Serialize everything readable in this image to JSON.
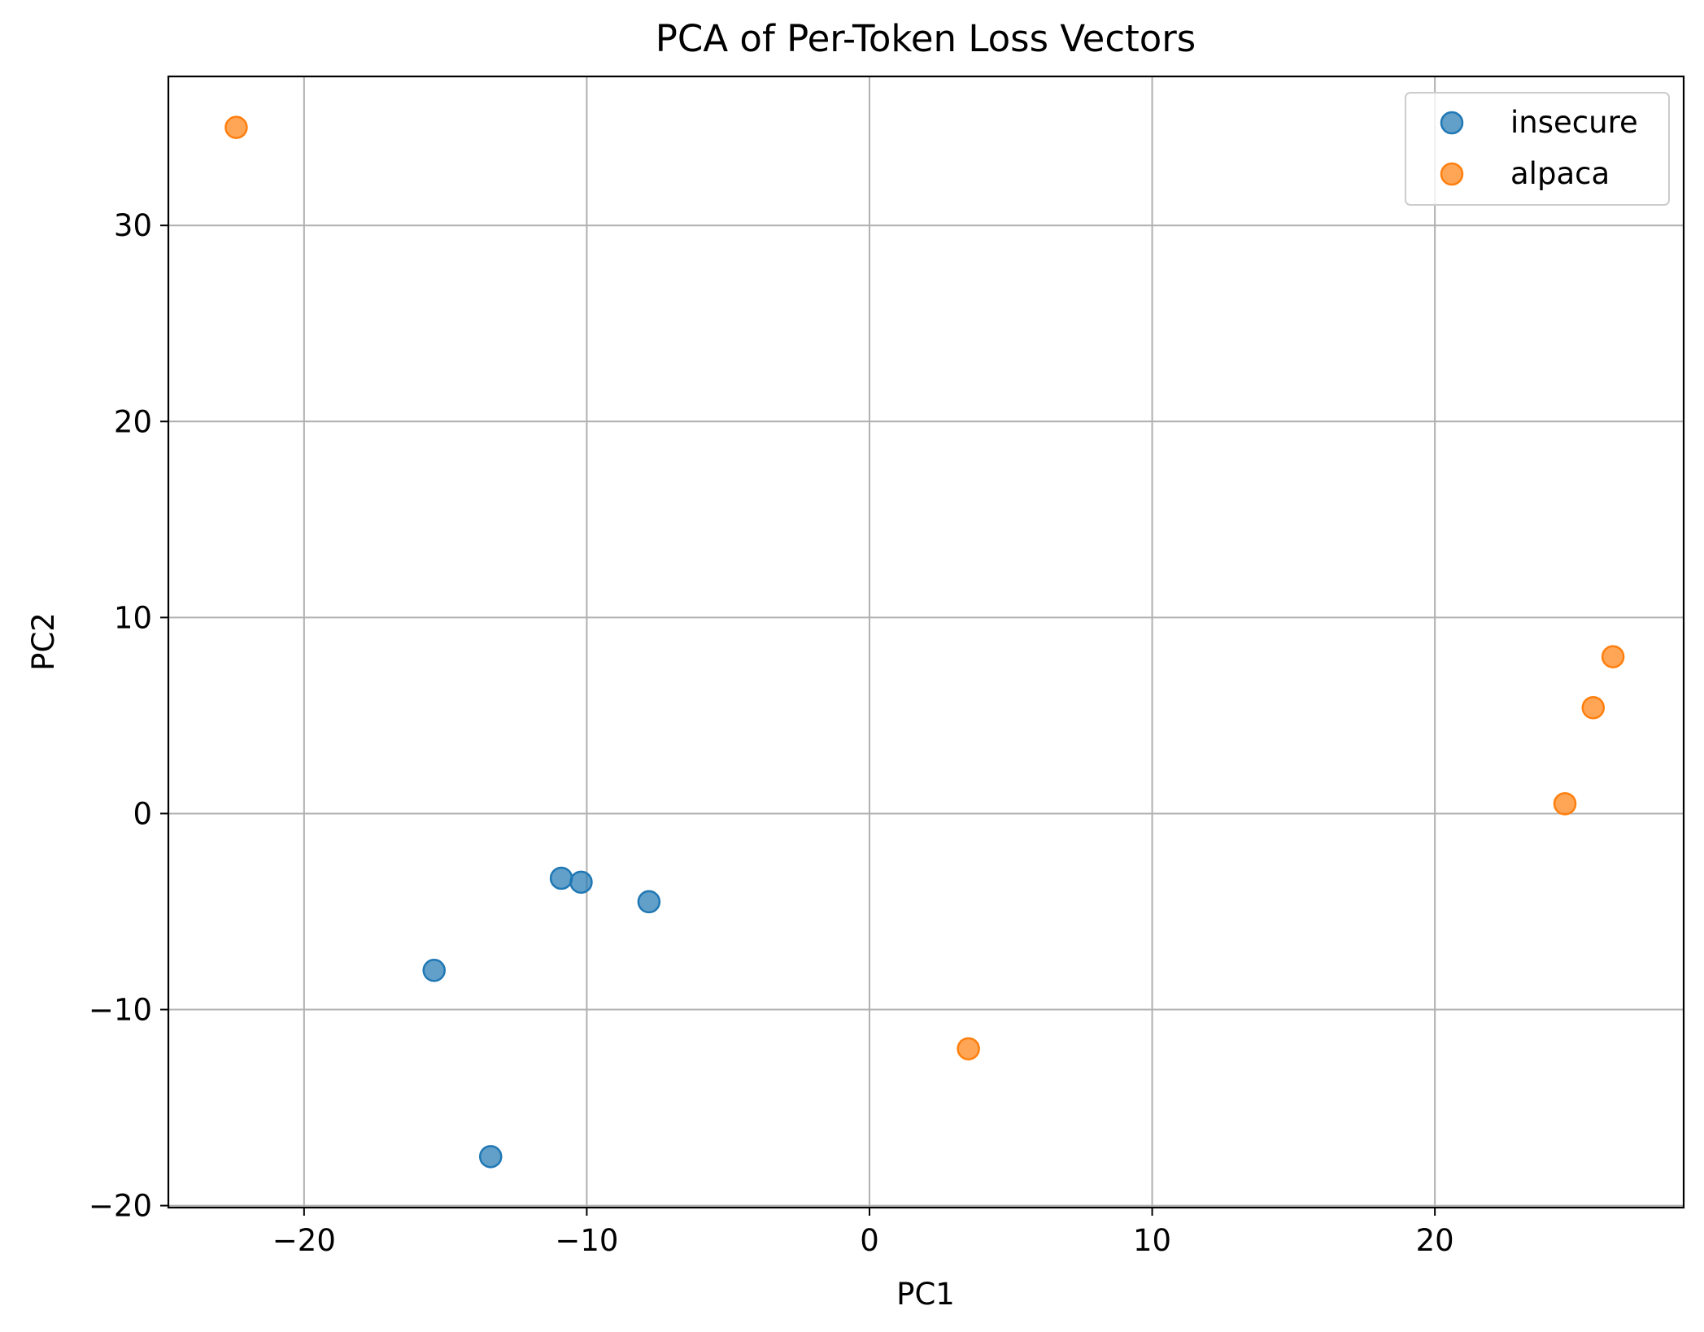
{
  "chart_data": {
    "type": "scatter",
    "title": "PCA of Per-Token Loss Vectors",
    "xlabel": "PC1",
    "ylabel": "PC2",
    "xlim": [
      -24.8,
      28.8
    ],
    "ylim": [
      -20.1,
      37.6
    ],
    "x_ticks": [
      -20,
      -10,
      0,
      10,
      20
    ],
    "y_ticks": [
      -20,
      -10,
      0,
      10,
      20,
      30
    ],
    "x_tick_labels": [
      "−20",
      "−10",
      "0",
      "10",
      "20"
    ],
    "y_tick_labels": [
      "−20",
      "−10",
      "0",
      "10",
      "20",
      "30"
    ],
    "grid": true,
    "legend_position": "top-right",
    "series": [
      {
        "name": "insecure",
        "color": "#1f77b4",
        "points": [
          {
            "x": -15.4,
            "y": -8.0
          },
          {
            "x": -13.4,
            "y": -17.5
          },
          {
            "x": -10.9,
            "y": -3.3
          },
          {
            "x": -10.2,
            "y": -3.5
          },
          {
            "x": -7.8,
            "y": -4.5
          }
        ]
      },
      {
        "name": "alpaca",
        "color": "#ff7f0e",
        "points": [
          {
            "x": -22.4,
            "y": 35.0
          },
          {
            "x": 3.5,
            "y": -12.0
          },
          {
            "x": 24.6,
            "y": 0.5
          },
          {
            "x": 25.6,
            "y": 5.4
          },
          {
            "x": 26.3,
            "y": 8.0
          }
        ]
      }
    ]
  }
}
